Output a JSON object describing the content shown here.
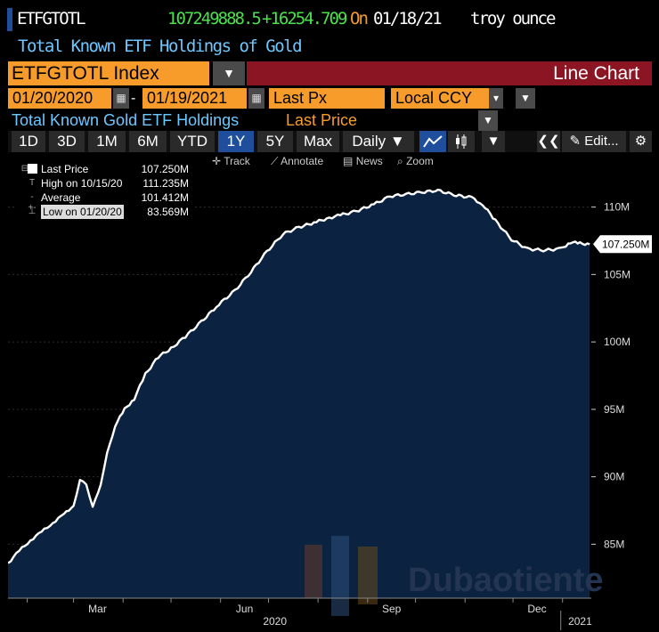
{
  "header": {
    "ticker": "ETFGTOTL",
    "last_value": "107249888.5",
    "change": "+16254.709",
    "on_label": "On",
    "date": "01/18/21",
    "unit": "troy ounce",
    "subtitle": "Total Known ETF Holdings of Gold"
  },
  "controls": {
    "security": "ETFGTOTL Index",
    "chart_kind": "Line Chart",
    "start_date": "01/20/2020",
    "end_date": "01/19/2021",
    "field": "Last Px",
    "currency": "Local CCY",
    "description": "Total Known Gold ETF Holdings",
    "field_label": "Last Price",
    "dash": "-"
  },
  "periods": {
    "items": [
      "1D",
      "3D",
      "1M",
      "6M",
      "YTD",
      "1Y",
      "5Y",
      "Max"
    ],
    "active": "1Y",
    "frequency": "Daily ▼",
    "edit": "Edit..."
  },
  "chart_toolbar": {
    "track": "Track",
    "annotate": "Annotate",
    "news": "News",
    "zoom": "Zoom"
  },
  "legend": {
    "last": {
      "label": "Last Price",
      "value": "107.250M"
    },
    "high": {
      "label": "High on 10/15/20",
      "value": "111.235M"
    },
    "average": {
      "label": "Average",
      "value": "101.412M"
    },
    "low": {
      "label": "Low on 01/20/20",
      "value": "83.569M"
    }
  },
  "colors": {
    "background": "#000000",
    "area_fill": "#0b2340",
    "line": "#ffffff",
    "accent_orange": "#f79c2a",
    "accent_blue": "#6ec7ff",
    "header_red": "#8c1524",
    "value_green": "#4de04d"
  },
  "watermark": "Dubaotiente",
  "chart_data": {
    "type": "area",
    "series": [
      {
        "name": "Last Price",
        "x": [
          "2020-01-20",
          "2020-01-27",
          "2020-02-03",
          "2020-02-10",
          "2020-02-17",
          "2020-02-24",
          "2020-03-01",
          "2020-03-05",
          "2020-03-09",
          "2020-03-13",
          "2020-03-18",
          "2020-03-22",
          "2020-03-27",
          "2020-04-02",
          "2020-04-08",
          "2020-04-15",
          "2020-04-23",
          "2020-05-01",
          "2020-05-10",
          "2020-05-20",
          "2020-05-31",
          "2020-06-10",
          "2020-06-20",
          "2020-06-30",
          "2020-07-10",
          "2020-07-20",
          "2020-07-31",
          "2020-08-08",
          "2020-08-15",
          "2020-08-25",
          "2020-09-05",
          "2020-09-15",
          "2020-09-25",
          "2020-10-05",
          "2020-10-15",
          "2020-10-25",
          "2020-11-05",
          "2020-11-12",
          "2020-11-20",
          "2020-11-30",
          "2020-12-10",
          "2020-12-20",
          "2020-12-31",
          "2021-01-06",
          "2021-01-12",
          "2021-01-18"
        ],
        "y": [
          83.6,
          84.5,
          85.3,
          85.9,
          86.6,
          87.2,
          87.9,
          89.7,
          89.5,
          87.7,
          89.5,
          91.7,
          93.8,
          95.0,
          95.8,
          97.6,
          98.9,
          99.5,
          100.4,
          101.5,
          102.8,
          103.8,
          105.2,
          106.7,
          108.0,
          108.5,
          108.9,
          109.2,
          109.4,
          109.7,
          110.2,
          110.8,
          110.95,
          111.1,
          111.235,
          110.9,
          110.7,
          110.2,
          109.0,
          107.6,
          106.9,
          106.8,
          106.9,
          107.4,
          107.3,
          107.25
        ]
      }
    ],
    "xlim": [
      "2020-01-20",
      "2021-01-19"
    ],
    "ylim": [
      81,
      114
    ],
    "yticks": [
      85,
      90,
      95,
      100,
      105,
      110
    ],
    "ytick_labels": [
      "85M",
      "90M",
      "95M",
      "100M",
      "105M",
      "110M"
    ],
    "xtick_labels": [
      "Mar",
      "Jun",
      "Sep",
      "Dec"
    ],
    "xyear_labels": [
      "2020",
      "2021"
    ],
    "last_value_label": "107.250M",
    "grid": true,
    "legend_position": "top-left"
  }
}
